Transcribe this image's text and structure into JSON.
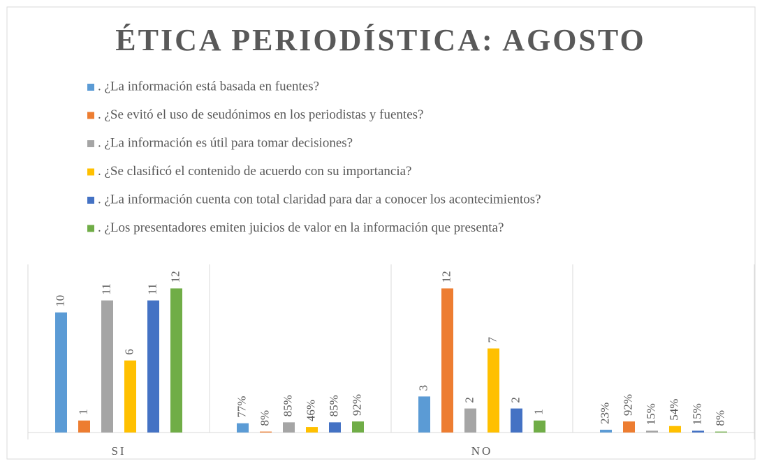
{
  "chart_data": {
    "type": "bar",
    "title": "ÉTICA PERIODÍSTICA: AGOSTO",
    "categories": [
      "SI",
      null,
      "NO",
      null
    ],
    "series": [
      {
        "name": ". ¿La información está basada en fuentes?",
        "color": "#5b9bd5",
        "values": [
          10,
          0.77,
          3,
          0.23
        ],
        "value_labels": [
          "10",
          "77%",
          "3",
          "23%"
        ]
      },
      {
        "name": ". ¿Se evitó el uso de seudónimos en los periodistas y fuentes?",
        "color": "#ed7d31",
        "values": [
          1,
          0.08,
          12,
          0.92
        ],
        "value_labels": [
          "1",
          "8%",
          "12",
          "92%"
        ]
      },
      {
        "name": ". ¿La información es útil para tomar decisiones?",
        "color": "#a5a5a5",
        "values": [
          11,
          0.85,
          2,
          0.15
        ],
        "value_labels": [
          "11",
          "85%",
          "2",
          "15%"
        ]
      },
      {
        "name": ". ¿Se clasificó el contenido de acuerdo con su importancia?",
        "color": "#ffc000",
        "values": [
          6,
          0.46,
          7,
          0.54
        ],
        "value_labels": [
          "6",
          "46%",
          "7",
          "54%"
        ]
      },
      {
        "name": ". ¿La información cuenta con total claridad para dar a conocer los acontecimientos?",
        "color": "#4472c4",
        "values": [
          11,
          0.85,
          2,
          0.15
        ],
        "value_labels": [
          "11",
          "85%",
          "2",
          "15%"
        ]
      },
      {
        "name": ". ¿Los presentadores emiten juicios de valor en la información que presenta?",
        "color": "#70ad47",
        "values": [
          12,
          0.92,
          1,
          0.08
        ],
        "value_labels": [
          "12",
          "92%",
          "1",
          "8%"
        ]
      }
    ],
    "ylim": [
      0,
      14
    ],
    "legend": "top"
  }
}
